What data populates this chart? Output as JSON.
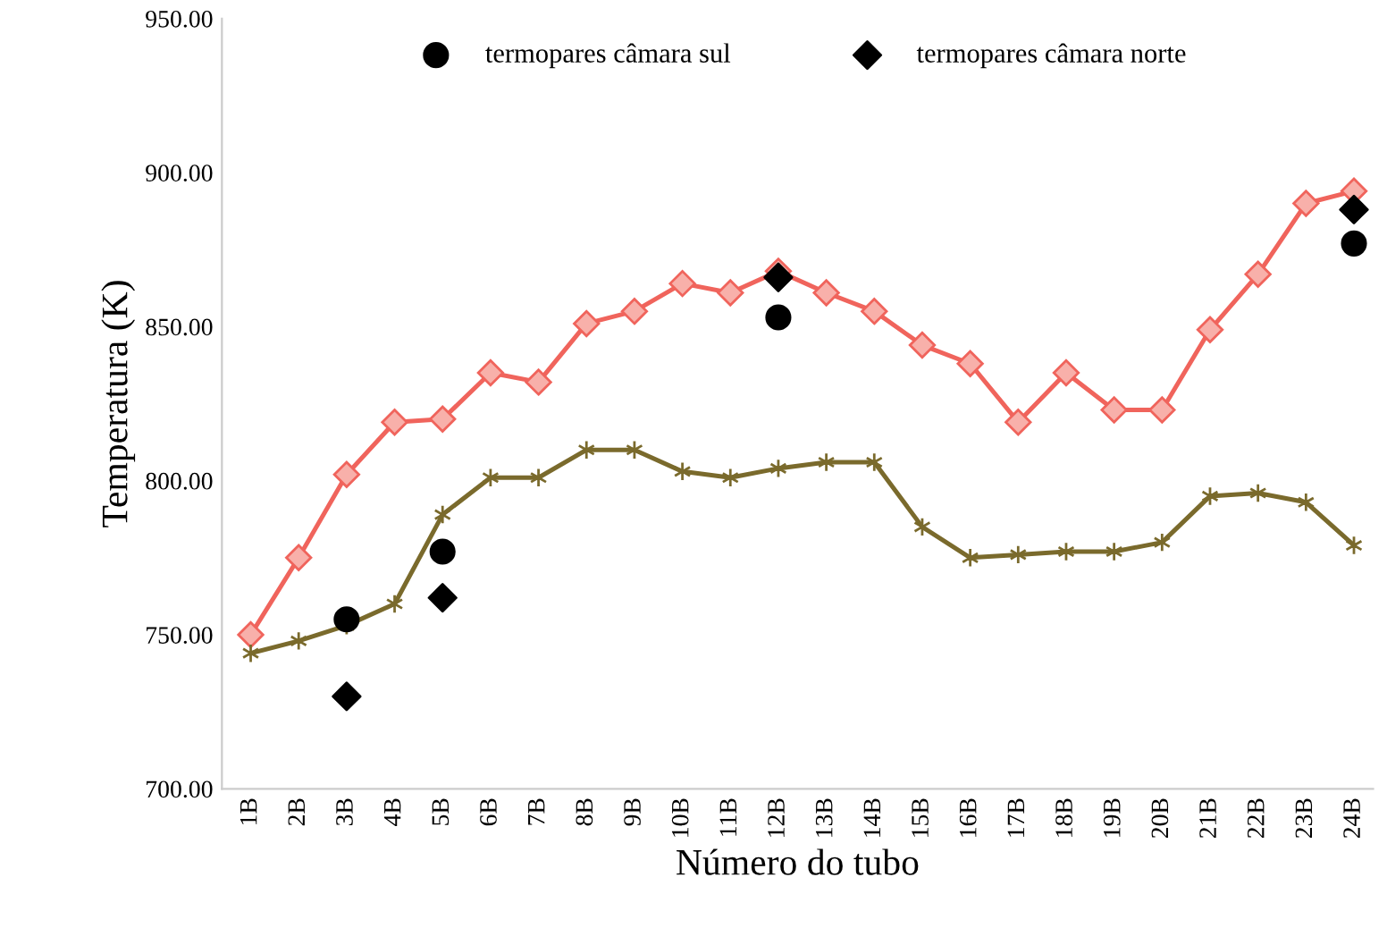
{
  "chart_data": {
    "type": "line",
    "xlabel": "Número do tubo",
    "ylabel": "Temperatura (K)",
    "categories": [
      "1B",
      "2B",
      "3B",
      "4B",
      "5B",
      "6B",
      "7B",
      "8B",
      "9B",
      "10B",
      "11B",
      "12B",
      "13B",
      "14B",
      "15B",
      "16B",
      "17B",
      "18B",
      "19B",
      "20B",
      "21B",
      "22B",
      "23B",
      "24B"
    ],
    "ylim": [
      700,
      950
    ],
    "yticks": [
      {
        "value": 700,
        "label": "700.00"
      },
      {
        "value": 750,
        "label": "750.00"
      },
      {
        "value": 800,
        "label": "800.00"
      },
      {
        "value": 850,
        "label": "850.00"
      },
      {
        "value": 900,
        "label": "900.00"
      },
      {
        "value": 950,
        "label": "950.00"
      }
    ],
    "grid": false,
    "legend": "top",
    "series": [
      {
        "marker": "diamond",
        "color": "#f0645c",
        "values": [
          750,
          775,
          802,
          819,
          820,
          835,
          832,
          851,
          855,
          864,
          861,
          868,
          861,
          855,
          844,
          838,
          819,
          835,
          823,
          823,
          849,
          867,
          890,
          894
        ]
      },
      {
        "marker": "cross",
        "color": "#7a6a2c",
        "values": [
          744,
          748,
          753,
          760,
          789,
          801,
          801,
          810,
          810,
          803,
          801,
          804,
          806,
          806,
          785,
          775,
          776,
          777,
          777,
          780,
          795,
          796,
          793,
          779
        ]
      },
      {
        "type": "scatter",
        "marker": "circle",
        "name": "termopares câmara sul",
        "color": "#000000",
        "values": [
          null,
          null,
          755,
          null,
          777,
          null,
          null,
          null,
          null,
          null,
          null,
          853,
          null,
          null,
          null,
          null,
          null,
          null,
          null,
          null,
          null,
          null,
          null,
          877
        ]
      },
      {
        "type": "scatter",
        "marker": "diamond",
        "name": "termopares câmara norte",
        "color": "#000000",
        "values": [
          null,
          null,
          730,
          null,
          762,
          null,
          null,
          null,
          null,
          null,
          null,
          866,
          null,
          null,
          null,
          null,
          null,
          null,
          null,
          null,
          null,
          null,
          null,
          888
        ]
      }
    ]
  }
}
